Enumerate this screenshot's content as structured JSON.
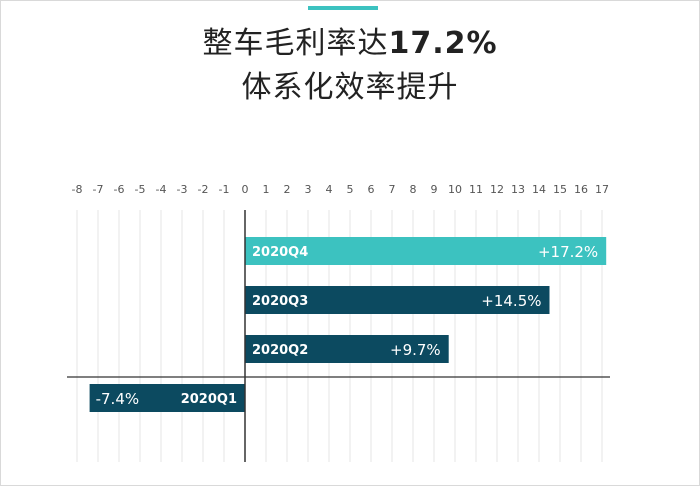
{
  "title": {
    "line1_text": "整车毛利率达",
    "line1_value": "17.2%",
    "line2": "体系化效率提升"
  },
  "colors": {
    "accent": "#3cc2c0",
    "highlight_bar": "#3cc2c0",
    "bar": "#0c4a60",
    "grid": "#e4e4e4",
    "axis": "#333333",
    "tick": "#555555"
  },
  "chart_data": {
    "type": "bar",
    "orientation": "horizontal",
    "xlim": [
      -8,
      17
    ],
    "ticks": [
      -8,
      -7,
      -6,
      -5,
      -4,
      -3,
      -2,
      -1,
      0,
      1,
      2,
      3,
      4,
      5,
      6,
      7,
      8,
      9,
      10,
      11,
      12,
      13,
      14,
      15,
      16,
      17
    ],
    "grid": true,
    "bars": [
      {
        "category": "2020Q4",
        "value": 17.2,
        "label": "+17.2%",
        "highlight": true
      },
      {
        "category": "2020Q3",
        "value": 14.5,
        "label": "+14.5%",
        "highlight": false
      },
      {
        "category": "2020Q2",
        "value": 9.7,
        "label": "+9.7%",
        "highlight": false
      },
      {
        "category": "2020Q1",
        "value": -7.4,
        "label": "-7.4%",
        "highlight": false
      }
    ]
  }
}
